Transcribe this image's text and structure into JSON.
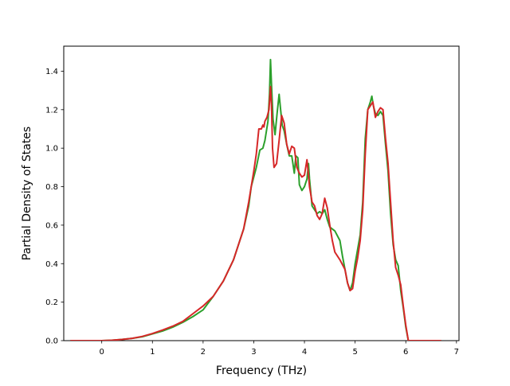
{
  "chart_data": {
    "type": "line",
    "title": "",
    "xlabel": "Frequency (THz)",
    "ylabel": "Partial Density of States",
    "xlim": [
      -0.75,
      7.05
    ],
    "ylim": [
      0.0,
      1.53
    ],
    "xticks": [
      0,
      1,
      2,
      3,
      4,
      5,
      6,
      7
    ],
    "yticks": [
      0.0,
      0.2,
      0.4,
      0.6,
      0.8,
      1.0,
      1.2,
      1.4
    ],
    "xtick_labels": [
      "0",
      "1",
      "2",
      "3",
      "4",
      "5",
      "6",
      "7"
    ],
    "ytick_labels": [
      "0.0",
      "0.2",
      "0.4",
      "0.6",
      "0.8",
      "1.0",
      "1.2",
      "1.4"
    ],
    "grid": false,
    "legend": "none",
    "series": [
      {
        "color": "#2ca02c",
        "points": [
          [
            -0.62,
            0.0
          ],
          [
            0.0,
            0.0
          ],
          [
            0.2,
            0.002
          ],
          [
            0.4,
            0.006
          ],
          [
            0.6,
            0.012
          ],
          [
            0.8,
            0.02
          ],
          [
            1.0,
            0.035
          ],
          [
            1.2,
            0.05
          ],
          [
            1.4,
            0.07
          ],
          [
            1.6,
            0.095
          ],
          [
            1.8,
            0.125
          ],
          [
            2.0,
            0.16
          ],
          [
            2.2,
            0.23
          ],
          [
            2.4,
            0.31
          ],
          [
            2.6,
            0.42
          ],
          [
            2.8,
            0.58
          ],
          [
            2.9,
            0.7
          ],
          [
            2.95,
            0.8
          ],
          [
            3.05,
            0.9
          ],
          [
            3.12,
            0.99
          ],
          [
            3.18,
            1.0
          ],
          [
            3.22,
            1.04
          ],
          [
            3.28,
            1.14
          ],
          [
            3.31,
            1.28
          ],
          [
            3.33,
            1.46
          ],
          [
            3.35,
            1.33
          ],
          [
            3.38,
            1.15
          ],
          [
            3.42,
            1.07
          ],
          [
            3.46,
            1.18
          ],
          [
            3.5,
            1.28
          ],
          [
            3.53,
            1.2
          ],
          [
            3.56,
            1.12
          ],
          [
            3.6,
            1.09
          ],
          [
            3.65,
            1.02
          ],
          [
            3.7,
            0.96
          ],
          [
            3.75,
            0.96
          ],
          [
            3.8,
            0.87
          ],
          [
            3.83,
            0.96
          ],
          [
            3.87,
            0.95
          ],
          [
            3.9,
            0.81
          ],
          [
            3.95,
            0.78
          ],
          [
            4.0,
            0.8
          ],
          [
            4.05,
            0.84
          ],
          [
            4.08,
            0.92
          ],
          [
            4.1,
            0.84
          ],
          [
            4.15,
            0.7
          ],
          [
            4.2,
            0.68
          ],
          [
            4.25,
            0.66
          ],
          [
            4.3,
            0.67
          ],
          [
            4.35,
            0.66
          ],
          [
            4.4,
            0.68
          ],
          [
            4.45,
            0.63
          ],
          [
            4.5,
            0.59
          ],
          [
            4.6,
            0.57
          ],
          [
            4.7,
            0.52
          ],
          [
            4.75,
            0.44
          ],
          [
            4.8,
            0.37
          ],
          [
            4.85,
            0.3
          ],
          [
            4.9,
            0.26
          ],
          [
            4.95,
            0.3
          ],
          [
            5.0,
            0.4
          ],
          [
            5.1,
            0.55
          ],
          [
            5.15,
            0.72
          ],
          [
            5.2,
            1.05
          ],
          [
            5.25,
            1.2
          ],
          [
            5.3,
            1.24
          ],
          [
            5.33,
            1.27
          ],
          [
            5.36,
            1.22
          ],
          [
            5.4,
            1.18
          ],
          [
            5.45,
            1.17
          ],
          [
            5.5,
            1.19
          ],
          [
            5.55,
            1.17
          ],
          [
            5.6,
            1.02
          ],
          [
            5.65,
            0.88
          ],
          [
            5.7,
            0.66
          ],
          [
            5.75,
            0.5
          ],
          [
            5.8,
            0.42
          ],
          [
            5.85,
            0.39
          ],
          [
            5.9,
            0.26
          ],
          [
            5.95,
            0.17
          ],
          [
            6.0,
            0.07
          ],
          [
            6.05,
            0.0
          ],
          [
            6.7,
            0.0
          ]
        ]
      },
      {
        "color": "#d62728",
        "points": [
          [
            -0.62,
            0.0
          ],
          [
            0.0,
            0.0
          ],
          [
            0.2,
            0.002
          ],
          [
            0.4,
            0.006
          ],
          [
            0.6,
            0.012
          ],
          [
            0.8,
            0.022
          ],
          [
            1.0,
            0.037
          ],
          [
            1.2,
            0.055
          ],
          [
            1.4,
            0.075
          ],
          [
            1.6,
            0.1
          ],
          [
            1.8,
            0.14
          ],
          [
            2.0,
            0.18
          ],
          [
            2.2,
            0.23
          ],
          [
            2.4,
            0.31
          ],
          [
            2.6,
            0.42
          ],
          [
            2.8,
            0.58
          ],
          [
            2.9,
            0.72
          ],
          [
            3.0,
            0.88
          ],
          [
            3.05,
            0.97
          ],
          [
            3.1,
            1.1
          ],
          [
            3.15,
            1.1
          ],
          [
            3.18,
            1.12
          ],
          [
            3.2,
            1.11
          ],
          [
            3.22,
            1.14
          ],
          [
            3.26,
            1.16
          ],
          [
            3.3,
            1.2
          ],
          [
            3.33,
            1.32
          ],
          [
            3.35,
            1.22
          ],
          [
            3.37,
            1.0
          ],
          [
            3.4,
            0.9
          ],
          [
            3.45,
            0.92
          ],
          [
            3.5,
            1.04
          ],
          [
            3.55,
            1.17
          ],
          [
            3.6,
            1.13
          ],
          [
            3.65,
            1.02
          ],
          [
            3.7,
            0.97
          ],
          [
            3.75,
            1.01
          ],
          [
            3.8,
            1.0
          ],
          [
            3.85,
            0.9
          ],
          [
            3.9,
            0.87
          ],
          [
            3.95,
            0.85
          ],
          [
            4.0,
            0.86
          ],
          [
            4.05,
            0.94
          ],
          [
            4.1,
            0.8
          ],
          [
            4.15,
            0.72
          ],
          [
            4.2,
            0.7
          ],
          [
            4.25,
            0.65
          ],
          [
            4.3,
            0.63
          ],
          [
            4.35,
            0.66
          ],
          [
            4.4,
            0.74
          ],
          [
            4.45,
            0.69
          ],
          [
            4.5,
            0.6
          ],
          [
            4.55,
            0.52
          ],
          [
            4.6,
            0.46
          ],
          [
            4.7,
            0.42
          ],
          [
            4.8,
            0.37
          ],
          [
            4.85,
            0.3
          ],
          [
            4.9,
            0.26
          ],
          [
            4.95,
            0.27
          ],
          [
            5.0,
            0.36
          ],
          [
            5.05,
            0.43
          ],
          [
            5.1,
            0.52
          ],
          [
            5.15,
            0.68
          ],
          [
            5.2,
            0.97
          ],
          [
            5.25,
            1.2
          ],
          [
            5.3,
            1.22
          ],
          [
            5.35,
            1.24
          ],
          [
            5.4,
            1.16
          ],
          [
            5.45,
            1.19
          ],
          [
            5.5,
            1.21
          ],
          [
            5.55,
            1.2
          ],
          [
            5.6,
            1.05
          ],
          [
            5.65,
            0.92
          ],
          [
            5.7,
            0.72
          ],
          [
            5.75,
            0.52
          ],
          [
            5.8,
            0.38
          ],
          [
            5.85,
            0.34
          ],
          [
            5.9,
            0.29
          ],
          [
            5.95,
            0.18
          ],
          [
            6.0,
            0.08
          ],
          [
            6.05,
            0.0
          ],
          [
            6.7,
            0.0
          ]
        ]
      }
    ]
  }
}
